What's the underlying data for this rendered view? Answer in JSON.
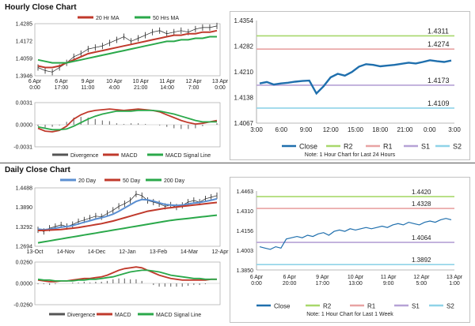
{
  "hourly": {
    "title": "Hourly Close Chart",
    "price": {
      "legend": [
        {
          "name": "20 Hr MA",
          "color": "#c0392b"
        },
        {
          "name": "50 Hrs MA",
          "color": "#2aa84a"
        }
      ],
      "yticks": [
        "1.4285",
        "1.4172",
        "1.4059",
        "1.3946"
      ],
      "ylim": [
        1.3946,
        1.4285
      ],
      "xticks": [
        "6 Apr\n0:00",
        "6 Apr\n17:00",
        "9 Apr\n11:00",
        "10 Apr\n4:00",
        "10 Apr\n21:00",
        "11 Apr\n14:00",
        "12 Apr\n7:00",
        "13 Apr\n0:00"
      ],
      "close": [
        1.4,
        1.398,
        1.397,
        1.4,
        1.403,
        1.407,
        1.409,
        1.412,
        1.413,
        1.414,
        1.416,
        1.418,
        1.42,
        1.417,
        1.419,
        1.421,
        1.423,
        1.424,
        1.422,
        1.423,
        1.424,
        1.423,
        1.425,
        1.426,
        1.426,
        1.427
      ],
      "ma20": [
        1.401,
        1.4,
        1.4,
        1.401,
        1.403,
        1.405,
        1.407,
        1.409,
        1.41,
        1.411,
        1.412,
        1.413,
        1.414,
        1.415,
        1.416,
        1.417,
        1.418,
        1.419,
        1.42,
        1.421,
        1.421,
        1.422,
        1.422,
        1.423,
        1.423,
        1.424
      ],
      "ma50": [
        1.405,
        1.404,
        1.403,
        1.403,
        1.403,
        1.404,
        1.405,
        1.406,
        1.407,
        1.408,
        1.409,
        1.41,
        1.411,
        1.412,
        1.413,
        1.414,
        1.415,
        1.416,
        1.417,
        1.417,
        1.418,
        1.418,
        1.419,
        1.419,
        1.42,
        1.42
      ]
    },
    "macd": {
      "yticks": [
        "0.0031",
        "0.0000",
        "-0.0031"
      ],
      "ylim": [
        -0.0031,
        0.0031
      ],
      "legend": [
        {
          "name": "Divergence",
          "color": "#555555"
        },
        {
          "name": "MACD",
          "color": "#c0392b"
        },
        {
          "name": "MACD Signal Line",
          "color": "#2aa84a"
        }
      ],
      "macd": [
        -0.0005,
        -0.0009,
        -0.001,
        -0.0008,
        -0.0002,
        0.0008,
        0.0014,
        0.0018,
        0.002,
        0.0021,
        0.0022,
        0.0021,
        0.002,
        0.0021,
        0.0022,
        0.0021,
        0.002,
        0.0018,
        0.0014,
        0.001,
        0.0006,
        0.0003,
        0.0001,
        0.0002,
        0.0004,
        0.0006
      ],
      "signal": [
        -0.0003,
        -0.0005,
        -0.0007,
        -0.0007,
        -0.0006,
        -0.0002,
        0.0003,
        0.0008,
        0.0012,
        0.0015,
        0.0017,
        0.0019,
        0.0019,
        0.0019,
        0.002,
        0.002,
        0.002,
        0.0019,
        0.0017,
        0.0015,
        0.0012,
        0.0009,
        0.0006,
        0.0004,
        0.0004,
        0.0004
      ],
      "divergence": [
        -0.0002,
        -0.0004,
        -0.0003,
        -0.0001,
        0.0004,
        0.001,
        0.0011,
        0.001,
        0.0008,
        0.0006,
        0.0005,
        0.0002,
        0.0001,
        0.0002,
        0.0002,
        0.0001,
        0.0,
        -0.0001,
        -0.0003,
        -0.0005,
        -0.0006,
        -0.0006,
        -0.0005,
        -0.0002,
        0.0,
        0.0002
      ]
    },
    "pivot": {
      "yticks": [
        "1.4354",
        "1.4282",
        "1.4210",
        "1.4138",
        "1.4067"
      ],
      "ylim": [
        1.4067,
        1.4354
      ],
      "xticks": [
        "3:00",
        "6:00",
        "9:00",
        "12:00",
        "15:00",
        "18:00",
        "21:00",
        "0:00",
        "3:00"
      ],
      "levels": [
        {
          "name": "R2",
          "value": 1.4311,
          "label": "1.4311",
          "color": "#a8d86b"
        },
        {
          "name": "R1",
          "value": 1.4274,
          "label": "1.4274",
          "color": "#e8a3a3"
        },
        {
          "name": "S1",
          "value": 1.4173,
          "label": "1.4173",
          "color": "#b6a2d6"
        },
        {
          "name": "S2",
          "value": 1.4109,
          "label": "1.4109",
          "color": "#8fd3e8"
        }
      ],
      "close": [
        1.4178,
        1.4182,
        1.4175,
        1.4178,
        1.418,
        1.4183,
        1.4185,
        1.4186,
        1.415,
        1.417,
        1.4195,
        1.4205,
        1.42,
        1.421,
        1.4225,
        1.4232,
        1.423,
        1.4226,
        1.4228,
        1.423,
        1.4233,
        1.4236,
        1.4234,
        1.4238,
        1.4243,
        1.424,
        1.4238,
        1.4242
      ],
      "close_color": "#1f6fad",
      "legend_close": "Close",
      "note": "Note: 1 Hour Chart for Last 24 Hours"
    }
  },
  "daily": {
    "title": "Daily Close Chart",
    "price": {
      "legend": [
        {
          "name": "20 Day",
          "color": "#5b8fd1"
        },
        {
          "name": "50 Day",
          "color": "#c0392b"
        },
        {
          "name": "200 Day",
          "color": "#2aa84a"
        }
      ],
      "yticks": [
        "1.4488",
        "1.3890",
        "1.3292",
        "1.2694"
      ],
      "ylim": [
        1.2694,
        1.4488
      ],
      "xticks": [
        "13-Oct",
        "14-Nov",
        "14-Dec",
        "12-Jan",
        "13-Feb",
        "14-Mar",
        "12-Apr"
      ],
      "close": [
        1.32,
        1.315,
        1.325,
        1.33,
        1.335,
        1.33,
        1.336,
        1.345,
        1.35,
        1.356,
        1.362,
        1.36,
        1.37,
        1.38,
        1.392,
        1.4,
        1.41,
        1.43,
        1.425,
        1.41,
        1.405,
        1.4,
        1.392,
        1.396,
        1.39,
        1.395,
        1.405,
        1.41,
        1.405,
        1.415,
        1.42,
        1.425
      ],
      "ma20": [
        1.322,
        1.32,
        1.322,
        1.325,
        1.328,
        1.33,
        1.333,
        1.338,
        1.343,
        1.348,
        1.353,
        1.357,
        1.362,
        1.368,
        1.377,
        1.387,
        1.397,
        1.407,
        1.413,
        1.412,
        1.408,
        1.403,
        1.398,
        1.396,
        1.395,
        1.396,
        1.399,
        1.402,
        1.404,
        1.407,
        1.411,
        1.415
      ],
      "ma50": [
        1.318,
        1.318,
        1.319,
        1.32,
        1.321,
        1.323,
        1.325,
        1.327,
        1.33,
        1.333,
        1.336,
        1.339,
        1.343,
        1.347,
        1.352,
        1.357,
        1.362,
        1.367,
        1.372,
        1.377,
        1.38,
        1.383,
        1.386,
        1.388,
        1.39,
        1.392,
        1.394,
        1.396,
        1.398,
        1.4,
        1.402,
        1.404
      ],
      "ma200": [
        1.28,
        1.283,
        1.286,
        1.289,
        1.292,
        1.295,
        1.298,
        1.301,
        1.304,
        1.307,
        1.31,
        1.313,
        1.316,
        1.319,
        1.322,
        1.325,
        1.328,
        1.331,
        1.334,
        1.337,
        1.34,
        1.343,
        1.346,
        1.349,
        1.351,
        1.353,
        1.355,
        1.357,
        1.359,
        1.361,
        1.363,
        1.365
      ]
    },
    "macd": {
      "yticks": [
        "0.0260",
        "0.0000",
        "-0.0260"
      ],
      "ylim": [
        -0.026,
        0.026
      ],
      "legend": [
        {
          "name": "Divergence",
          "color": "#555555"
        },
        {
          "name": "MACD",
          "color": "#c0392b"
        },
        {
          "name": "MACD Signal Line",
          "color": "#2aa84a"
        }
      ],
      "macd": [
        0.004,
        0.003,
        0.002,
        0.002,
        0.003,
        0.003,
        0.004,
        0.005,
        0.006,
        0.006,
        0.007,
        0.008,
        0.01,
        0.013,
        0.016,
        0.018,
        0.019,
        0.02,
        0.019,
        0.016,
        0.013,
        0.01,
        0.008,
        0.006,
        0.005,
        0.004,
        0.004,
        0.004,
        0.004,
        0.004,
        0.005,
        0.005
      ],
      "signal": [
        0.005,
        0.004,
        0.004,
        0.003,
        0.003,
        0.003,
        0.003,
        0.004,
        0.004,
        0.005,
        0.005,
        0.006,
        0.007,
        0.008,
        0.01,
        0.012,
        0.014,
        0.015,
        0.016,
        0.016,
        0.015,
        0.014,
        0.012,
        0.01,
        0.009,
        0.008,
        0.007,
        0.006,
        0.006,
        0.005,
        0.005,
        0.005
      ],
      "divergence": [
        -0.001,
        -0.001,
        -0.002,
        -0.001,
        0.0,
        0.0,
        0.001,
        0.001,
        0.002,
        0.001,
        0.002,
        0.002,
        0.003,
        0.005,
        0.006,
        0.006,
        0.005,
        0.005,
        0.003,
        0.0,
        -0.002,
        -0.004,
        -0.004,
        -0.004,
        -0.004,
        -0.004,
        -0.003,
        -0.002,
        -0.002,
        -0.001,
        0.0,
        0.0
      ]
    },
    "pivot": {
      "yticks": [
        "1.4463",
        "1.4310",
        "1.4156",
        "1.4003",
        "1.3850"
      ],
      "ylim": [
        1.385,
        1.4463
      ],
      "xticks": [
        "6 Apr\n0:00",
        "6 Apr\n20:00",
        "9 Apr\n17:00",
        "10 Apr\n13:00",
        "11 Apr\n9:00",
        "12 Apr\n5:00",
        "13 Apr\n1:00"
      ],
      "levels": [
        {
          "name": "R2",
          "value": 1.442,
          "label": "1.4420",
          "color": "#a8d86b"
        },
        {
          "name": "R1",
          "value": 1.4328,
          "label": "1.4328",
          "color": "#e8a3a3"
        },
        {
          "name": "S1",
          "value": 1.4064,
          "label": "1.4064",
          "color": "#b6a2d6"
        },
        {
          "name": "S2",
          "value": 1.3892,
          "label": "1.3892",
          "color": "#8fd3e8"
        }
      ],
      "close": [
        1.403,
        1.402,
        1.401,
        1.403,
        1.402,
        1.409,
        1.41,
        1.411,
        1.41,
        1.412,
        1.411,
        1.413,
        1.414,
        1.412,
        1.415,
        1.416,
        1.415,
        1.417,
        1.416,
        1.417,
        1.418,
        1.417,
        1.418,
        1.419,
        1.418,
        1.42,
        1.421,
        1.42,
        1.422,
        1.421,
        1.42,
        1.422,
        1.423,
        1.422,
        1.424,
        1.425,
        1.424
      ],
      "close_color": "#1f6fad",
      "legend_close": "Close",
      "note": "Note: 1 Hour Chart for Last 1 Week"
    }
  }
}
